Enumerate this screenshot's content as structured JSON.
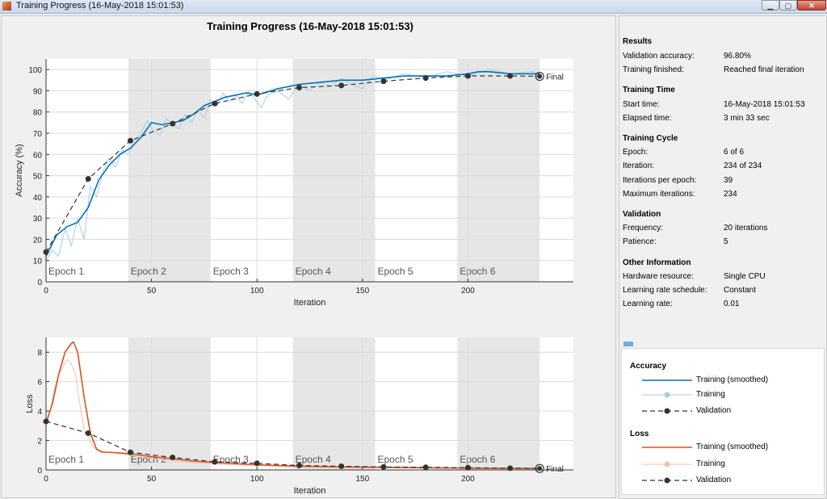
{
  "window": {
    "title": "Training Progress (16-May-2018 15:01:53)",
    "close_glyph": "✕",
    "min_glyph": "▁",
    "max_glyph": "▢"
  },
  "figure": {
    "title": "Training Progress (16-May-2018 15:01:53)",
    "final_label": "Final"
  },
  "epochs": [
    "Epoch 1",
    "Epoch 2",
    "Epoch 3",
    "Epoch 4",
    "Epoch 5",
    "Epoch 6"
  ],
  "results": {
    "heading": "Results",
    "rows": [
      {
        "label": "Validation accuracy:",
        "value": "96.80%"
      },
      {
        "label": "Training finished:",
        "value": "Reached final iteration"
      }
    ]
  },
  "training_time": {
    "heading": "Training Time",
    "rows": [
      {
        "label": "Start time:",
        "value": "16-May-2018 15:01:53"
      },
      {
        "label": "Elapsed time:",
        "value": "3 min 33 sec"
      }
    ]
  },
  "training_cycle": {
    "heading": "Training Cycle",
    "rows": [
      {
        "label": "Epoch:",
        "value": "6 of 6"
      },
      {
        "label": "Iteration:",
        "value": "234 of 234"
      },
      {
        "label": "Iterations per epoch:",
        "value": "39"
      },
      {
        "label": "Maximum iterations:",
        "value": "234"
      }
    ]
  },
  "validation": {
    "heading": "Validation",
    "rows": [
      {
        "label": "Frequency:",
        "value": "20 iterations"
      },
      {
        "label": "Patience:",
        "value": "5"
      }
    ]
  },
  "other_info": {
    "heading": "Other Information",
    "rows": [
      {
        "label": "Hardware resource:",
        "value": "Single CPU"
      },
      {
        "label": "Learning rate schedule:",
        "value": "Constant"
      },
      {
        "label": "Learning rate:",
        "value": "0.01"
      }
    ]
  },
  "legend": {
    "accuracy_title": "Accuracy",
    "loss_title": "Loss",
    "items": [
      "Training (smoothed)",
      "Training",
      "Validation"
    ]
  },
  "colors": {
    "acc_smoothed": "#0072bd",
    "acc_raw": "#a6cee3",
    "loss_smoothed": "#d95319",
    "loss_raw": "#f4c1ad",
    "validation": "#333333",
    "epoch_shade": "#e6e6e6"
  },
  "chart_data": [
    {
      "type": "line",
      "xlabel": "Iteration",
      "ylabel": "Accuracy (%)",
      "xlim": [
        0,
        250
      ],
      "ylim": [
        0,
        105
      ],
      "xticks": [
        0,
        50,
        100,
        150,
        200
      ],
      "yticks": [
        0,
        10,
        20,
        30,
        40,
        50,
        60,
        70,
        80,
        90,
        100
      ],
      "series": [
        {
          "name": "Training (smoothed)",
          "x": [
            0,
            5,
            10,
            15,
            20,
            25,
            30,
            35,
            40,
            45,
            50,
            55,
            60,
            65,
            70,
            75,
            80,
            85,
            90,
            95,
            100,
            110,
            120,
            130,
            140,
            150,
            160,
            170,
            180,
            190,
            200,
            205,
            210,
            220,
            230,
            234
          ],
          "y": [
            12,
            22,
            26,
            28,
            35,
            48,
            55,
            60,
            63,
            68,
            75,
            74,
            75,
            76,
            79,
            83,
            85,
            87,
            88,
            89,
            88,
            91,
            93,
            94,
            95,
            95,
            96,
            97,
            97,
            97,
            98,
            99,
            99,
            98,
            98,
            98
          ]
        },
        {
          "name": "Training",
          "x": [
            0,
            3,
            6,
            9,
            12,
            15,
            18,
            21,
            24,
            27,
            30,
            33,
            36,
            39,
            42,
            45,
            48,
            51,
            54,
            57,
            60,
            63,
            66,
            69,
            72,
            75,
            78,
            81,
            84,
            87,
            90,
            93,
            96,
            99,
            102,
            105,
            110,
            115,
            120,
            125,
            130,
            135,
            140,
            145,
            150,
            155,
            160,
            170,
            180,
            190,
            200,
            210,
            220,
            230,
            234
          ],
          "y": [
            10,
            15,
            12,
            25,
            17,
            30,
            20,
            45,
            40,
            52,
            58,
            54,
            62,
            60,
            65,
            70,
            76,
            71,
            69,
            77,
            74,
            72,
            79,
            75,
            81,
            77,
            86,
            83,
            89,
            85,
            88,
            84,
            90,
            86,
            82,
            88,
            90,
            86,
            93,
            90,
            94,
            92,
            96,
            93,
            91,
            97,
            95,
            98,
            96,
            99,
            97,
            100,
            98,
            99,
            98
          ]
        },
        {
          "name": "Validation",
          "x": [
            0,
            20,
            40,
            60,
            80,
            100,
            120,
            140,
            160,
            180,
            200,
            220,
            234
          ],
          "y": [
            14,
            48.5,
            66.5,
            74.5,
            84,
            88.5,
            91.5,
            92.5,
            94.5,
            96,
            97,
            97,
            96.8
          ]
        }
      ]
    },
    {
      "type": "line",
      "xlabel": "Iteration",
      "ylabel": "Loss",
      "xlim": [
        0,
        250
      ],
      "ylim": [
        0,
        9
      ],
      "xticks": [
        0,
        50,
        100,
        150,
        200
      ],
      "yticks": [
        0,
        2,
        4,
        6,
        8
      ],
      "series": [
        {
          "name": "Training (smoothed)",
          "x": [
            0,
            3,
            6,
            9,
            12,
            13,
            15,
            18,
            21,
            24,
            27,
            30,
            40,
            50,
            60,
            70,
            80,
            100,
            120,
            140,
            160,
            180,
            200,
            234
          ],
          "y": [
            3.2,
            4.5,
            6.5,
            8.0,
            8.6,
            8.7,
            8.0,
            5.0,
            2.5,
            1.4,
            1.2,
            1.2,
            1.1,
            0.9,
            0.75,
            0.6,
            0.5,
            0.35,
            0.25,
            0.2,
            0.18,
            0.15,
            0.12,
            0.1
          ]
        },
        {
          "name": "Training",
          "x": [
            0,
            2,
            4,
            6,
            8,
            10,
            12,
            14,
            16,
            18,
            20,
            22,
            24,
            26,
            30,
            40,
            50,
            60,
            70,
            80,
            100,
            120,
            150,
            200,
            234
          ],
          "y": [
            3,
            4,
            5.5,
            6.5,
            7,
            7.5,
            7.2,
            6.5,
            4.5,
            2.8,
            2.3,
            1.6,
            1.4,
            1.2,
            1.2,
            1.0,
            0.8,
            0.6,
            0.5,
            0.4,
            0.3,
            0.2,
            0.15,
            0.1,
            0.08
          ]
        },
        {
          "name": "Validation",
          "x": [
            0,
            20,
            40,
            60,
            80,
            100,
            120,
            140,
            160,
            180,
            200,
            220,
            234
          ],
          "y": [
            3.3,
            2.5,
            1.2,
            0.85,
            0.55,
            0.45,
            0.3,
            0.25,
            0.2,
            0.18,
            0.15,
            0.12,
            0.1
          ]
        }
      ]
    }
  ]
}
